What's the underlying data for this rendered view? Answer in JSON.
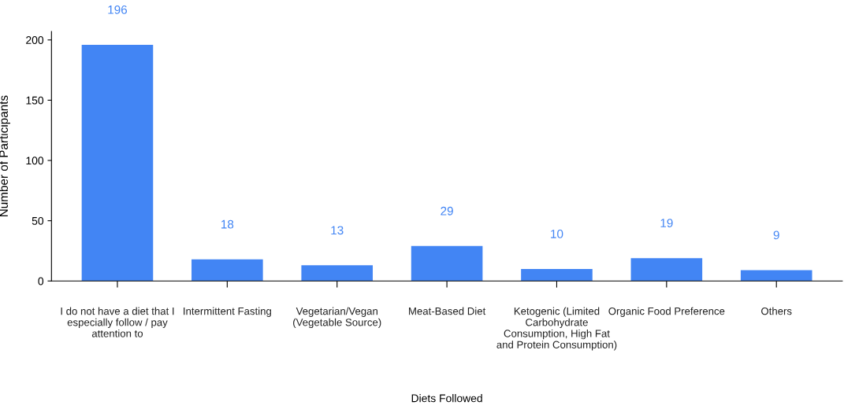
{
  "chart_data": {
    "type": "bar",
    "xlabel": "Diets Followed",
    "ylabel": "Number of Participants",
    "categories": [
      "I do not have a diet that I\nespecially follow / pay\nattention to",
      "Intermittent Fasting",
      "Vegetarian/Vegan\n(Vegetable Source)",
      "Meat-Based Diet",
      "Ketogenic (Limited\nCarbohydrate\nConsumption, High Fat\nand Protein Consumption)",
      "Organic Food Preference",
      "Others"
    ],
    "values": [
      196,
      18,
      13,
      29,
      10,
      19,
      9
    ],
    "color": "#4285f4",
    "ylim": [
      0,
      207
    ],
    "yticks": [
      0,
      50,
      100,
      150,
      200
    ],
    "grid": false,
    "data_labels": true
  }
}
